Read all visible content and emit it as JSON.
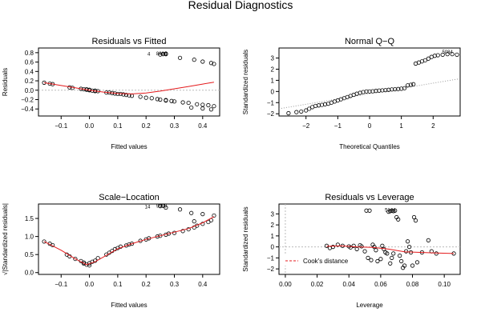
{
  "title": "Residual Diagnostics",
  "chart_data": [
    {
      "id": "resfit",
      "type": "scatter",
      "title": "Residuals vs Fitted",
      "xlabel": "Fitted values",
      "ylabel": "Residuals",
      "xlim": [
        -0.18,
        0.46
      ],
      "ylim": [
        -0.55,
        0.9
      ],
      "xticks": [
        -0.1,
        0.0,
        0.1,
        0.2,
        0.3,
        0.4
      ],
      "xtick_labels": [
        "−0.1",
        "0.0",
        "0.1",
        "0.2",
        "0.3",
        "0.4"
      ],
      "yticks": [
        -0.4,
        -0.2,
        0.0,
        0.2,
        0.4,
        0.6,
        0.8
      ],
      "ytick_labels": [
        "−0.4",
        "−0.2",
        "0.0",
        "0.2",
        "0.4",
        "0.6",
        "0.8"
      ],
      "hline": 0,
      "points": [
        [
          -0.16,
          0.16
        ],
        [
          -0.14,
          0.14
        ],
        [
          -0.13,
          0.13
        ],
        [
          -0.07,
          0.06
        ],
        [
          -0.06,
          0.05
        ],
        [
          -0.03,
          0.03
        ],
        [
          -0.02,
          0.02
        ],
        [
          -0.01,
          0.01
        ],
        [
          -0.01,
          0.02
        ],
        [
          0.0,
          0.0
        ],
        [
          0.0,
          0.01
        ],
        [
          0.01,
          -0.01
        ],
        [
          0.02,
          -0.01
        ],
        [
          0.02,
          -0.02
        ],
        [
          0.03,
          -0.02
        ],
        [
          0.06,
          -0.05
        ],
        [
          0.07,
          -0.05
        ],
        [
          0.08,
          -0.06
        ],
        [
          0.09,
          -0.07
        ],
        [
          0.1,
          -0.08
        ],
        [
          0.11,
          -0.08
        ],
        [
          0.12,
          -0.09
        ],
        [
          0.13,
          -0.1
        ],
        [
          0.14,
          -0.11
        ],
        [
          0.15,
          -0.12
        ],
        [
          0.18,
          -0.14
        ],
        [
          0.2,
          -0.16
        ],
        [
          0.22,
          -0.17
        ],
        [
          0.24,
          -0.19
        ],
        [
          0.25,
          -0.2
        ],
        [
          0.27,
          -0.21
        ],
        [
          0.27,
          -0.22
        ],
        [
          0.29,
          -0.23
        ],
        [
          0.3,
          -0.24
        ],
        [
          0.33,
          -0.26
        ],
        [
          0.35,
          -0.27
        ],
        [
          0.38,
          -0.3
        ],
        [
          0.4,
          -0.31
        ],
        [
          0.42,
          -0.32
        ],
        [
          0.44,
          -0.34
        ],
        [
          0.25,
          0.76
        ],
        [
          0.26,
          0.77
        ],
        [
          0.27,
          0.77
        ],
        [
          0.27,
          0.78
        ],
        [
          0.32,
          0.69
        ],
        [
          0.37,
          0.65
        ],
        [
          0.4,
          0.61
        ],
        [
          0.43,
          0.58
        ],
        [
          0.44,
          0.56
        ],
        [
          0.36,
          -0.37
        ],
        [
          0.4,
          -0.39
        ],
        [
          0.43,
          -0.41
        ]
      ],
      "smooth": [
        [
          -0.16,
          0.16
        ],
        [
          -0.1,
          0.1
        ],
        [
          -0.05,
          0.05
        ],
        [
          0.0,
          0.0
        ],
        [
          0.05,
          -0.04
        ],
        [
          0.1,
          -0.07
        ],
        [
          0.15,
          -0.08
        ],
        [
          0.2,
          -0.06
        ],
        [
          0.25,
          -0.02
        ],
        [
          0.3,
          0.03
        ],
        [
          0.35,
          0.08
        ],
        [
          0.4,
          0.13
        ],
        [
          0.44,
          0.17
        ]
      ],
      "annotations": [
        {
          "text": "4",
          "x": 0.21,
          "y": 0.77
        },
        {
          "text": "8884",
          "x": 0.255,
          "y": 0.78
        }
      ]
    },
    {
      "id": "qq",
      "type": "scatter",
      "title": "Normal Q−Q",
      "xlabel": "Theoretical Quantiles",
      "ylabel": "Standardized residuals",
      "xlim": [
        -2.85,
        2.85
      ],
      "ylim": [
        -2.2,
        3.9
      ],
      "xticks": [
        -2,
        -1,
        0,
        1,
        2
      ],
      "xtick_labels": [
        "−2",
        "−1",
        "0",
        "1",
        "2"
      ],
      "yticks": [
        -2,
        -1,
        0,
        1,
        2,
        3
      ],
      "ytick_labels": [
        "−2",
        "−1",
        "0",
        "1",
        "2",
        "3"
      ],
      "refline": [
        [
          -2.85,
          -1.55
        ],
        [
          2.85,
          1.15
        ]
      ],
      "points": [
        [
          -2.55,
          -1.95
        ],
        [
          -2.3,
          -1.85
        ],
        [
          -2.15,
          -1.8
        ],
        [
          -2.0,
          -1.7
        ],
        [
          -1.9,
          -1.55
        ],
        [
          -1.8,
          -1.4
        ],
        [
          -1.7,
          -1.3
        ],
        [
          -1.6,
          -1.25
        ],
        [
          -1.5,
          -1.2
        ],
        [
          -1.4,
          -1.15
        ],
        [
          -1.3,
          -1.1
        ],
        [
          -1.2,
          -1.0
        ],
        [
          -1.1,
          -0.9
        ],
        [
          -1.0,
          -0.8
        ],
        [
          -0.9,
          -0.7
        ],
        [
          -0.8,
          -0.6
        ],
        [
          -0.7,
          -0.5
        ],
        [
          -0.6,
          -0.4
        ],
        [
          -0.5,
          -0.3
        ],
        [
          -0.4,
          -0.2
        ],
        [
          -0.3,
          -0.12
        ],
        [
          -0.2,
          -0.05
        ],
        [
          -0.1,
          0.0
        ],
        [
          0.0,
          0.0
        ],
        [
          0.1,
          0.02
        ],
        [
          0.2,
          0.05
        ],
        [
          0.3,
          0.08
        ],
        [
          0.4,
          0.1
        ],
        [
          0.5,
          0.12
        ],
        [
          0.6,
          0.15
        ],
        [
          0.7,
          0.18
        ],
        [
          0.8,
          0.2
        ],
        [
          0.9,
          0.22
        ],
        [
          1.0,
          0.25
        ],
        [
          1.1,
          0.3
        ],
        [
          1.2,
          0.55
        ],
        [
          1.3,
          0.6
        ],
        [
          1.38,
          0.65
        ],
        [
          1.45,
          2.5
        ],
        [
          1.55,
          2.6
        ],
        [
          1.65,
          2.7
        ],
        [
          1.75,
          2.8
        ],
        [
          1.85,
          2.95
        ],
        [
          1.95,
          3.1
        ],
        [
          2.05,
          3.2
        ],
        [
          2.15,
          3.25
        ],
        [
          2.3,
          3.3
        ],
        [
          2.45,
          3.35
        ],
        [
          2.6,
          3.35
        ],
        [
          2.75,
          3.3
        ]
      ],
      "annotations": [
        {
          "text": "5084",
          "x": 2.45,
          "y": 3.55
        }
      ]
    },
    {
      "id": "scaleloc",
      "type": "scatter",
      "title": "Scale−Location",
      "xlabel": "Fitted values",
      "ylabel": "√|Standardized residuals|",
      "xlim": [
        -0.18,
        0.46
      ],
      "ylim": [
        -0.05,
        1.9
      ],
      "xticks": [
        -0.1,
        0.0,
        0.1,
        0.2,
        0.3,
        0.4
      ],
      "xtick_labels": [
        "−0.1",
        "0.0",
        "0.1",
        "0.2",
        "0.3",
        "0.4"
      ],
      "yticks": [
        0.0,
        0.5,
        1.0,
        1.5
      ],
      "ytick_labels": [
        "0.0",
        "0.5",
        "1.0",
        "1.5"
      ],
      "points": [
        [
          -0.16,
          0.86
        ],
        [
          -0.14,
          0.8
        ],
        [
          -0.13,
          0.76
        ],
        [
          -0.08,
          0.5
        ],
        [
          -0.07,
          0.45
        ],
        [
          -0.05,
          0.38
        ],
        [
          -0.03,
          0.32
        ],
        [
          -0.02,
          0.28
        ],
        [
          -0.02,
          0.25
        ],
        [
          -0.01,
          0.22
        ],
        [
          0.0,
          0.2
        ],
        [
          0.0,
          0.26
        ],
        [
          0.01,
          0.3
        ],
        [
          0.02,
          0.33
        ],
        [
          0.03,
          0.4
        ],
        [
          0.06,
          0.5
        ],
        [
          0.07,
          0.55
        ],
        [
          0.08,
          0.6
        ],
        [
          0.09,
          0.65
        ],
        [
          0.1,
          0.68
        ],
        [
          0.11,
          0.72
        ],
        [
          0.13,
          0.75
        ],
        [
          0.14,
          0.78
        ],
        [
          0.15,
          0.8
        ],
        [
          0.18,
          0.88
        ],
        [
          0.2,
          0.92
        ],
        [
          0.21,
          0.95
        ],
        [
          0.24,
          1.0
        ],
        [
          0.25,
          1.02
        ],
        [
          0.27,
          1.05
        ],
        [
          0.28,
          1.08
        ],
        [
          0.3,
          1.1
        ],
        [
          0.33,
          1.15
        ],
        [
          0.35,
          1.2
        ],
        [
          0.37,
          1.25
        ],
        [
          0.38,
          1.3
        ],
        [
          0.4,
          1.35
        ],
        [
          0.42,
          1.4
        ],
        [
          0.43,
          1.45
        ],
        [
          0.44,
          1.58
        ],
        [
          0.4,
          1.62
        ],
        [
          0.36,
          1.65
        ],
        [
          0.32,
          1.75
        ],
        [
          0.27,
          1.8
        ],
        [
          0.25,
          1.84
        ],
        [
          0.26,
          1.85
        ],
        [
          0.37,
          1.42
        ]
      ],
      "smooth": [
        [
          -0.16,
          0.86
        ],
        [
          -0.1,
          0.62
        ],
        [
          -0.05,
          0.38
        ],
        [
          -0.01,
          0.22
        ],
        [
          0.02,
          0.3
        ],
        [
          0.06,
          0.48
        ],
        [
          0.1,
          0.66
        ],
        [
          0.15,
          0.8
        ],
        [
          0.2,
          0.92
        ],
        [
          0.25,
          1.02
        ],
        [
          0.3,
          1.12
        ],
        [
          0.35,
          1.22
        ],
        [
          0.4,
          1.38
        ],
        [
          0.44,
          1.55
        ]
      ],
      "annotations": [
        {
          "text": "14",
          "x": 0.205,
          "y": 1.82
        },
        {
          "text": "9999",
          "x": 0.255,
          "y": 1.84
        }
      ]
    },
    {
      "id": "leverage",
      "type": "scatter",
      "title": "Residuals vs Leverage",
      "xlabel": "Leverage",
      "ylabel": "Standardized residuals",
      "xlim": [
        -0.004,
        0.11
      ],
      "ylim": [
        -2.5,
        3.9
      ],
      "xticks": [
        0.0,
        0.02,
        0.04,
        0.06,
        0.08,
        0.1
      ],
      "xtick_labels": [
        "0.00",
        "0.02",
        "0.04",
        "0.06",
        "0.08",
        "0.10"
      ],
      "yticks": [
        -2,
        -1,
        0,
        1,
        2,
        3
      ],
      "ytick_labels": [
        "−2",
        "−1",
        "0",
        "1",
        "2",
        "3"
      ],
      "hline": 0,
      "vline": 0,
      "points": [
        [
          0.026,
          0.1
        ],
        [
          0.028,
          -0.1
        ],
        [
          0.03,
          0.0
        ],
        [
          0.033,
          0.2
        ],
        [
          0.036,
          0.1
        ],
        [
          0.04,
          0.05
        ],
        [
          0.041,
          -0.05
        ],
        [
          0.043,
          0.1
        ],
        [
          0.045,
          -0.2
        ],
        [
          0.047,
          0.15
        ],
        [
          0.048,
          0.05
        ],
        [
          0.05,
          -0.4
        ],
        [
          0.051,
          3.3
        ],
        [
          0.053,
          3.3
        ],
        [
          0.052,
          -1.0
        ],
        [
          0.054,
          -1.2
        ],
        [
          0.055,
          0.2
        ],
        [
          0.056,
          0.0
        ],
        [
          0.057,
          -0.3
        ],
        [
          0.058,
          -1.3
        ],
        [
          0.06,
          -1.1
        ],
        [
          0.061,
          0.1
        ],
        [
          0.062,
          -0.2
        ],
        [
          0.063,
          -0.5
        ],
        [
          0.064,
          -0.6
        ],
        [
          0.065,
          3.2
        ],
        [
          0.066,
          3.25
        ],
        [
          0.067,
          3.3
        ],
        [
          0.068,
          3.25
        ],
        [
          0.069,
          3.3
        ],
        [
          0.066,
          -1.5
        ],
        [
          0.067,
          -1.0
        ],
        [
          0.068,
          -0.6
        ],
        [
          0.07,
          2.7
        ],
        [
          0.071,
          2.5
        ],
        [
          0.072,
          -0.8
        ],
        [
          0.073,
          -1.3
        ],
        [
          0.074,
          -1.9
        ],
        [
          0.075,
          -1.7
        ],
        [
          0.076,
          -0.4
        ],
        [
          0.077,
          0.5
        ],
        [
          0.078,
          0.0
        ],
        [
          0.079,
          -0.5
        ],
        [
          0.08,
          -1.7
        ],
        [
          0.081,
          2.7
        ],
        [
          0.082,
          2.4
        ],
        [
          0.083,
          -1.4
        ],
        [
          0.086,
          -0.5
        ],
        [
          0.09,
          0.6
        ],
        [
          0.092,
          -0.4
        ],
        [
          0.095,
          -0.6
        ],
        [
          0.106,
          -0.6
        ]
      ],
      "smooth": [
        [
          0.026,
          0.05
        ],
        [
          0.035,
          0.1
        ],
        [
          0.045,
          0.0
        ],
        [
          0.055,
          -0.05
        ],
        [
          0.065,
          -0.2
        ],
        [
          0.075,
          -0.45
        ],
        [
          0.085,
          -0.5
        ],
        [
          0.095,
          -0.55
        ],
        [
          0.106,
          -0.6
        ]
      ],
      "legend": "Cook's distance",
      "annotations": [
        {
          "text": "5144",
          "x": 0.066,
          "y": 3.35
        }
      ]
    }
  ]
}
